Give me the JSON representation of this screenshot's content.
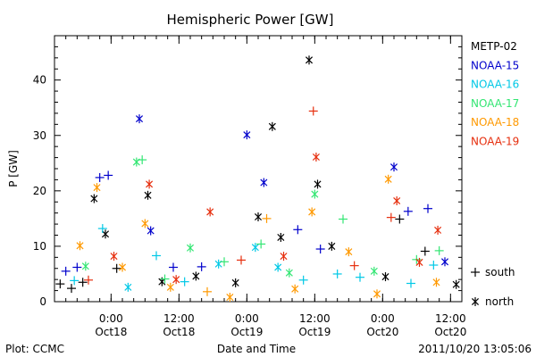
{
  "chart_data": {
    "type": "scatter",
    "title": "Hemispheric Power [GW]",
    "xlabel": "Date and Time",
    "ylabel": "P [GW]",
    "x_range": [
      "2011-10-17 14:00",
      "2011-10-20 14:00"
    ],
    "ylim": [
      0,
      48
    ],
    "x_ticks": [
      {
        "time": "2011-10-18 00:00",
        "line1": "0:00",
        "line2": "Oct18"
      },
      {
        "time": "2011-10-18 12:00",
        "line1": "12:00",
        "line2": "Oct18"
      },
      {
        "time": "2011-10-19 00:00",
        "line1": "0:00",
        "line2": "Oct19"
      },
      {
        "time": "2011-10-19 12:00",
        "line1": "12:00",
        "line2": "Oct19"
      },
      {
        "time": "2011-10-20 00:00",
        "line1": "0:00",
        "line2": "Oct20"
      },
      {
        "time": "2011-10-20 12:00",
        "line1": "12:00",
        "line2": "Oct20"
      }
    ],
    "y_ticks": [
      0,
      10,
      20,
      30,
      40
    ],
    "marker_legend": {
      "south": "south",
      "north": "north"
    },
    "series": [
      {
        "name": "METP-02",
        "color": "#000000",
        "points": [
          {
            "x": "2011-10-17 15:00",
            "y": 3.2,
            "hemi": "south"
          },
          {
            "x": "2011-10-17 17:00",
            "y": 2.4,
            "hemi": "south"
          },
          {
            "x": "2011-10-17 19:00",
            "y": 3.5,
            "hemi": "south"
          },
          {
            "x": "2011-10-17 21:00",
            "y": 18.6,
            "hemi": "north"
          },
          {
            "x": "2011-10-17 23:00",
            "y": 12.2,
            "hemi": "north"
          },
          {
            "x": "2011-10-18 01:00",
            "y": 6.0,
            "hemi": "south"
          },
          {
            "x": "2011-10-18 06:30",
            "y": 19.2,
            "hemi": "north"
          },
          {
            "x": "2011-10-18 09:00",
            "y": 3.6,
            "hemi": "north"
          },
          {
            "x": "2011-10-18 15:00",
            "y": 4.6,
            "hemi": "north"
          },
          {
            "x": "2011-10-18 22:00",
            "y": 3.4,
            "hemi": "north"
          },
          {
            "x": "2011-10-19 02:00",
            "y": 15.3,
            "hemi": "north"
          },
          {
            "x": "2011-10-19 04:30",
            "y": 31.6,
            "hemi": "north"
          },
          {
            "x": "2011-10-19 06:00",
            "y": 11.6,
            "hemi": "north"
          },
          {
            "x": "2011-10-19 11:00",
            "y": 43.6,
            "hemi": "north"
          },
          {
            "x": "2011-10-19 12:30",
            "y": 21.2,
            "hemi": "north"
          },
          {
            "x": "2011-10-19 15:00",
            "y": 10.0,
            "hemi": "north"
          },
          {
            "x": "2011-10-20 00:30",
            "y": 4.5,
            "hemi": "north"
          },
          {
            "x": "2011-10-20 03:00",
            "y": 14.9,
            "hemi": "south"
          },
          {
            "x": "2011-10-20 07:30",
            "y": 9.1,
            "hemi": "south"
          },
          {
            "x": "2011-10-20 13:00",
            "y": 3.1,
            "hemi": "north"
          }
        ]
      },
      {
        "name": "NOAA-15",
        "color": "#0000cc",
        "points": [
          {
            "x": "2011-10-17 16:00",
            "y": 5.5,
            "hemi": "south"
          },
          {
            "x": "2011-10-17 18:00",
            "y": 6.2,
            "hemi": "south"
          },
          {
            "x": "2011-10-17 22:00",
            "y": 22.4,
            "hemi": "south"
          },
          {
            "x": "2011-10-17 23:30",
            "y": 22.8,
            "hemi": "south"
          },
          {
            "x": "2011-10-18 05:00",
            "y": 33.0,
            "hemi": "north"
          },
          {
            "x": "2011-10-18 07:00",
            "y": 12.8,
            "hemi": "north"
          },
          {
            "x": "2011-10-18 11:00",
            "y": 6.2,
            "hemi": "south"
          },
          {
            "x": "2011-10-18 16:00",
            "y": 6.3,
            "hemi": "south"
          },
          {
            "x": "2011-10-19 00:00",
            "y": 30.1,
            "hemi": "north"
          },
          {
            "x": "2011-10-19 03:00",
            "y": 21.5,
            "hemi": "north"
          },
          {
            "x": "2011-10-19 09:00",
            "y": 13.0,
            "hemi": "south"
          },
          {
            "x": "2011-10-19 13:00",
            "y": 9.5,
            "hemi": "south"
          },
          {
            "x": "2011-10-20 02:00",
            "y": 24.3,
            "hemi": "north"
          },
          {
            "x": "2011-10-20 04:30",
            "y": 16.3,
            "hemi": "south"
          },
          {
            "x": "2011-10-20 08:00",
            "y": 16.8,
            "hemi": "south"
          },
          {
            "x": "2011-10-20 11:00",
            "y": 7.2,
            "hemi": "north"
          }
        ]
      },
      {
        "name": "NOAA-16",
        "color": "#00c8e6",
        "points": [
          {
            "x": "2011-10-17 17:30",
            "y": 3.8,
            "hemi": "south"
          },
          {
            "x": "2011-10-17 22:30",
            "y": 13.2,
            "hemi": "south"
          },
          {
            "x": "2011-10-18 03:00",
            "y": 2.6,
            "hemi": "north"
          },
          {
            "x": "2011-10-18 08:00",
            "y": 8.3,
            "hemi": "south"
          },
          {
            "x": "2011-10-18 13:00",
            "y": 3.6,
            "hemi": "south"
          },
          {
            "x": "2011-10-18 19:00",
            "y": 6.8,
            "hemi": "north"
          },
          {
            "x": "2011-10-19 01:30",
            "y": 9.8,
            "hemi": "north"
          },
          {
            "x": "2011-10-19 05:30",
            "y": 6.2,
            "hemi": "north"
          },
          {
            "x": "2011-10-19 10:00",
            "y": 3.9,
            "hemi": "south"
          },
          {
            "x": "2011-10-19 16:00",
            "y": 5.0,
            "hemi": "south"
          },
          {
            "x": "2011-10-19 20:00",
            "y": 4.4,
            "hemi": "south"
          },
          {
            "x": "2011-10-20 05:00",
            "y": 3.3,
            "hemi": "south"
          },
          {
            "x": "2011-10-20 09:00",
            "y": 6.6,
            "hemi": "south"
          }
        ]
      },
      {
        "name": "NOAA-17",
        "color": "#33e673",
        "points": [
          {
            "x": "2011-10-17 19:30",
            "y": 6.4,
            "hemi": "north"
          },
          {
            "x": "2011-10-18 04:30",
            "y": 25.2,
            "hemi": "north"
          },
          {
            "x": "2011-10-18 05:30",
            "y": 25.6,
            "hemi": "south"
          },
          {
            "x": "2011-10-18 09:30",
            "y": 4.1,
            "hemi": "south"
          },
          {
            "x": "2011-10-18 14:00",
            "y": 9.7,
            "hemi": "north"
          },
          {
            "x": "2011-10-18 20:00",
            "y": 7.2,
            "hemi": "south"
          },
          {
            "x": "2011-10-19 02:30",
            "y": 10.4,
            "hemi": "south"
          },
          {
            "x": "2011-10-19 07:30",
            "y": 5.2,
            "hemi": "north"
          },
          {
            "x": "2011-10-19 12:00",
            "y": 19.4,
            "hemi": "north"
          },
          {
            "x": "2011-10-19 17:00",
            "y": 14.9,
            "hemi": "south"
          },
          {
            "x": "2011-10-19 22:30",
            "y": 5.5,
            "hemi": "north"
          },
          {
            "x": "2011-10-20 06:00",
            "y": 7.6,
            "hemi": "south"
          },
          {
            "x": "2011-10-20 10:00",
            "y": 9.2,
            "hemi": "south"
          }
        ]
      },
      {
        "name": "NOAA-18",
        "color": "#ff9900",
        "points": [
          {
            "x": "2011-10-17 18:30",
            "y": 10.1,
            "hemi": "north"
          },
          {
            "x": "2011-10-17 21:30",
            "y": 20.6,
            "hemi": "north"
          },
          {
            "x": "2011-10-18 02:00",
            "y": 6.2,
            "hemi": "north"
          },
          {
            "x": "2011-10-18 06:00",
            "y": 14.1,
            "hemi": "north"
          },
          {
            "x": "2011-10-18 10:30",
            "y": 2.6,
            "hemi": "north"
          },
          {
            "x": "2011-10-18 17:00",
            "y": 1.8,
            "hemi": "south"
          },
          {
            "x": "2011-10-18 21:00",
            "y": 0.8,
            "hemi": "north"
          },
          {
            "x": "2011-10-19 03:30",
            "y": 15.0,
            "hemi": "south"
          },
          {
            "x": "2011-10-19 08:30",
            "y": 2.3,
            "hemi": "north"
          },
          {
            "x": "2011-10-19 11:30",
            "y": 16.2,
            "hemi": "north"
          },
          {
            "x": "2011-10-19 18:00",
            "y": 9.0,
            "hemi": "north"
          },
          {
            "x": "2011-10-19 23:00",
            "y": 1.4,
            "hemi": "north"
          },
          {
            "x": "2011-10-20 01:00",
            "y": 22.1,
            "hemi": "north"
          },
          {
            "x": "2011-10-20 09:30",
            "y": 3.5,
            "hemi": "north"
          }
        ]
      },
      {
        "name": "NOAA-19",
        "color": "#e62e0d",
        "points": [
          {
            "x": "2011-10-17 20:00",
            "y": 3.9,
            "hemi": "south"
          },
          {
            "x": "2011-10-18 00:30",
            "y": 8.2,
            "hemi": "north"
          },
          {
            "x": "2011-10-18 06:45",
            "y": 21.2,
            "hemi": "north"
          },
          {
            "x": "2011-10-18 11:30",
            "y": 4.0,
            "hemi": "north"
          },
          {
            "x": "2011-10-18 17:30",
            "y": 16.2,
            "hemi": "north"
          },
          {
            "x": "2011-10-18 23:00",
            "y": 7.5,
            "hemi": "south"
          },
          {
            "x": "2011-10-19 06:30",
            "y": 8.2,
            "hemi": "north"
          },
          {
            "x": "2011-10-19 11:45",
            "y": 34.4,
            "hemi": "south"
          },
          {
            "x": "2011-10-19 12:15",
            "y": 26.1,
            "hemi": "north"
          },
          {
            "x": "2011-10-19 19:00",
            "y": 6.5,
            "hemi": "south"
          },
          {
            "x": "2011-10-20 01:30",
            "y": 15.2,
            "hemi": "south"
          },
          {
            "x": "2011-10-20 02:30",
            "y": 18.2,
            "hemi": "north"
          },
          {
            "x": "2011-10-20 06:30",
            "y": 7.1,
            "hemi": "north"
          },
          {
            "x": "2011-10-20 09:45",
            "y": 12.9,
            "hemi": "north"
          }
        ]
      }
    ]
  },
  "footer": {
    "plot_credit": "Plot: CCMC",
    "timestamp": "2011/10/20 13:05:06"
  }
}
